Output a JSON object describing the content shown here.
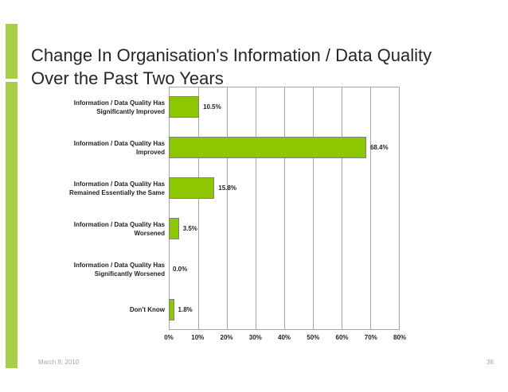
{
  "slide": {
    "title": "Change In Organisation's Information / Data Quality\nOver the Past Two Years",
    "footer_date": "March 8, 2010",
    "page_number": "36"
  },
  "colors": {
    "accent_bar": "#a6cf47",
    "bar_fill": "#8dc702",
    "bar_border": "#808080",
    "gridline": "#a6a6a6",
    "title_text": "#262626",
    "label_text": "#1f1f1f",
    "footer_text": "#a6a6a6"
  },
  "chart_data": {
    "type": "bar",
    "orientation": "horizontal",
    "title": "",
    "xlabel": "",
    "ylabel": "",
    "categories": [
      "Information / Data Quality Has Significantly Improved",
      "Information / Data Quality Has Improved",
      "Information / Data Quality Has Remained Essentially the Same",
      "Information / Data Quality Has Worsened",
      "Information / Data Quality Has Significantly Worsened",
      "Don't Know"
    ],
    "values": [
      10.5,
      68.4,
      15.8,
      3.5,
      0.0,
      1.8
    ],
    "value_labels": [
      "10.5%",
      "68.4%",
      "15.8%",
      "3.5%",
      "0.0%",
      "1.8%"
    ],
    "x_ticks": [
      "0%",
      "10%",
      "20%",
      "30%",
      "40%",
      "50%",
      "60%",
      "70%",
      "80%"
    ],
    "xlim": [
      0,
      80
    ],
    "grid": true,
    "legend": false
  }
}
